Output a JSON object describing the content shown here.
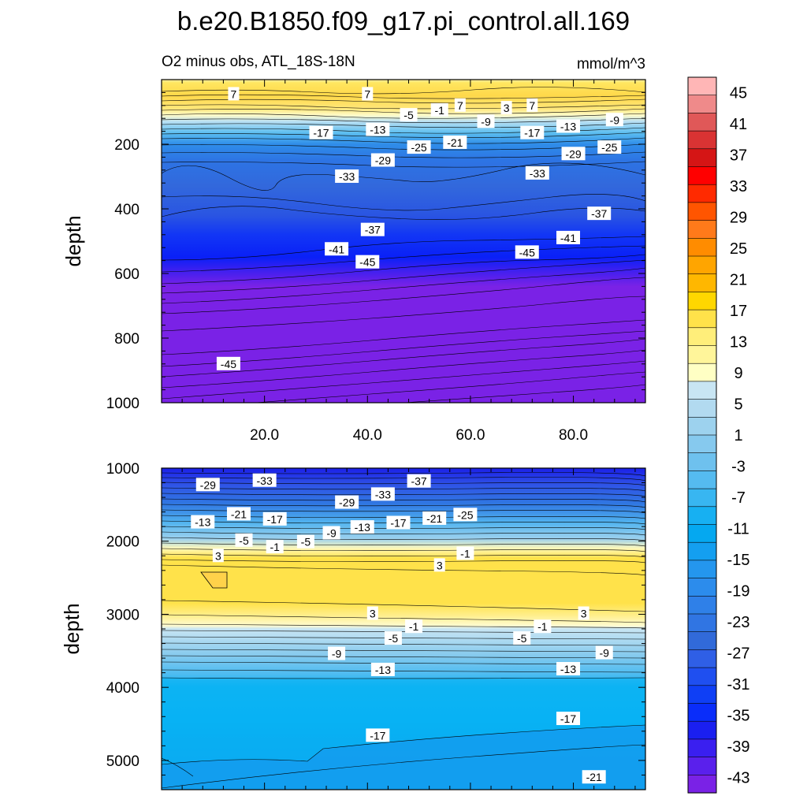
{
  "title": "b.e20.B1850.f09_g17.pi_control.all.169",
  "subtitle_left": "O2 minus obs, ATL_18S-18N",
  "subtitle_right": "mmol/m^3",
  "colorbar": {
    "labels": [
      "45",
      "41",
      "37",
      "33",
      "29",
      "25",
      "21",
      "17",
      "13",
      "9",
      "5",
      "1",
      "-3",
      "-7",
      "-11",
      "-15",
      "-19",
      "-23",
      "-27",
      "-31",
      "-35",
      "-39",
      "-43"
    ],
    "colors": [
      "#ffb6b6",
      "#ef8a8a",
      "#e05858",
      "#d93333",
      "#d51515",
      "#ff0000",
      "#ff2a00",
      "#ff5500",
      "#ff7a1a",
      "#ff8c00",
      "#ffa500",
      "#ffb700",
      "#ffd700",
      "#ffe24a",
      "#ffee7a",
      "#fff59a",
      "#ffffc4",
      "#c8e5f3",
      "#b2daf0",
      "#9dd2ee",
      "#86c9ee",
      "#6ec1ee",
      "#55bbf0",
      "#38b6f1",
      "#17b0f2",
      "#05a8f0",
      "#149ff0",
      "#2496ee",
      "#2c8cec",
      "#2f80e8",
      "#3075e3",
      "#316ad9",
      "#2f5fe6",
      "#1f4ff0",
      "#0f3ff5",
      "#0a2dfa",
      "#1a1ff0",
      "#3a1ff0",
      "#5a20ec",
      "#7a22e6"
    ]
  },
  "chart_data": [
    {
      "type": "contour",
      "panel": "top",
      "x_ticks": [
        "20.0",
        "40.0",
        "60.0",
        "80.0"
      ],
      "xlim": [
        0,
        94
      ],
      "ylabel": "depth",
      "y_ticks": [
        "200",
        "400",
        "600",
        "800",
        "1000"
      ],
      "ylim": [
        0,
        1000
      ],
      "y_inverted": true,
      "contour_labels": [
        {
          "text": "7",
          "x": 14,
          "y": 45
        },
        {
          "text": "7",
          "x": 40,
          "y": 45
        },
        {
          "text": "7",
          "x": 58,
          "y": 80
        },
        {
          "text": "3",
          "x": 67,
          "y": 88
        },
        {
          "text": "7",
          "x": 72,
          "y": 80
        },
        {
          "text": "-5",
          "x": 48,
          "y": 110
        },
        {
          "text": "-1",
          "x": 54,
          "y": 95
        },
        {
          "text": "-9",
          "x": 63,
          "y": 130
        },
        {
          "text": "-9",
          "x": 88,
          "y": 125
        },
        {
          "text": "-17",
          "x": 31,
          "y": 165
        },
        {
          "text": "-13",
          "x": 42,
          "y": 155
        },
        {
          "text": "-17",
          "x": 72,
          "y": 165
        },
        {
          "text": "-13",
          "x": 79,
          "y": 145
        },
        {
          "text": "-25",
          "x": 50,
          "y": 210
        },
        {
          "text": "-21",
          "x": 57,
          "y": 195
        },
        {
          "text": "-29",
          "x": 43,
          "y": 250
        },
        {
          "text": "-29",
          "x": 80,
          "y": 230
        },
        {
          "text": "-25",
          "x": 87,
          "y": 210
        },
        {
          "text": "-33",
          "x": 36,
          "y": 300
        },
        {
          "text": "-33",
          "x": 73,
          "y": 290
        },
        {
          "text": "-37",
          "x": 41,
          "y": 465
        },
        {
          "text": "-37",
          "x": 85,
          "y": 415
        },
        {
          "text": "-41",
          "x": 34,
          "y": 525
        },
        {
          "text": "-41",
          "x": 79,
          "y": 490
        },
        {
          "text": "-45",
          "x": 40,
          "y": 565
        },
        {
          "text": "-45",
          "x": 71,
          "y": 535
        },
        {
          "text": "-45",
          "x": 13,
          "y": 880
        }
      ]
    },
    {
      "type": "contour",
      "panel": "bottom",
      "xlim": [
        0,
        94
      ],
      "ylabel": "depth",
      "y_ticks": [
        "1000",
        "2000",
        "3000",
        "4000",
        "5000"
      ],
      "ylim": [
        1000,
        5400
      ],
      "y_inverted": true,
      "contour_labels": [
        {
          "text": "-29",
          "x": 9,
          "y": 1230
        },
        {
          "text": "-33",
          "x": 20,
          "y": 1170
        },
        {
          "text": "-37",
          "x": 50,
          "y": 1180
        },
        {
          "text": "-33",
          "x": 43,
          "y": 1360
        },
        {
          "text": "-29",
          "x": 36,
          "y": 1470
        },
        {
          "text": "-21",
          "x": 15,
          "y": 1630
        },
        {
          "text": "-17",
          "x": 22,
          "y": 1700
        },
        {
          "text": "-13",
          "x": 8,
          "y": 1740
        },
        {
          "text": "-21",
          "x": 53,
          "y": 1690
        },
        {
          "text": "-25",
          "x": 59,
          "y": 1640
        },
        {
          "text": "-17",
          "x": 46,
          "y": 1750
        },
        {
          "text": "-13",
          "x": 39,
          "y": 1810
        },
        {
          "text": "-9",
          "x": 33,
          "y": 1890
        },
        {
          "text": "-5",
          "x": 16,
          "y": 1990
        },
        {
          "text": "-1",
          "x": 22,
          "y": 2080
        },
        {
          "text": "-5",
          "x": 28,
          "y": 2010
        },
        {
          "text": "3",
          "x": 11,
          "y": 2200
        },
        {
          "text": "-1",
          "x": 59,
          "y": 2170
        },
        {
          "text": "3",
          "x": 54,
          "y": 2330
        },
        {
          "text": "3",
          "x": 41,
          "y": 2990
        },
        {
          "text": "3",
          "x": 82,
          "y": 2990
        },
        {
          "text": "-1",
          "x": 49,
          "y": 3170
        },
        {
          "text": "-1",
          "x": 74,
          "y": 3170
        },
        {
          "text": "-5",
          "x": 45,
          "y": 3330
        },
        {
          "text": "-5",
          "x": 70,
          "y": 3330
        },
        {
          "text": "-9",
          "x": 34,
          "y": 3540
        },
        {
          "text": "-9",
          "x": 86,
          "y": 3530
        },
        {
          "text": "-13",
          "x": 43,
          "y": 3760
        },
        {
          "text": "-13",
          "x": 79,
          "y": 3750
        },
        {
          "text": "-17",
          "x": 42,
          "y": 4660
        },
        {
          "text": "-17",
          "x": 79,
          "y": 4430
        },
        {
          "text": "-21",
          "x": 84,
          "y": 5230
        }
      ]
    }
  ]
}
